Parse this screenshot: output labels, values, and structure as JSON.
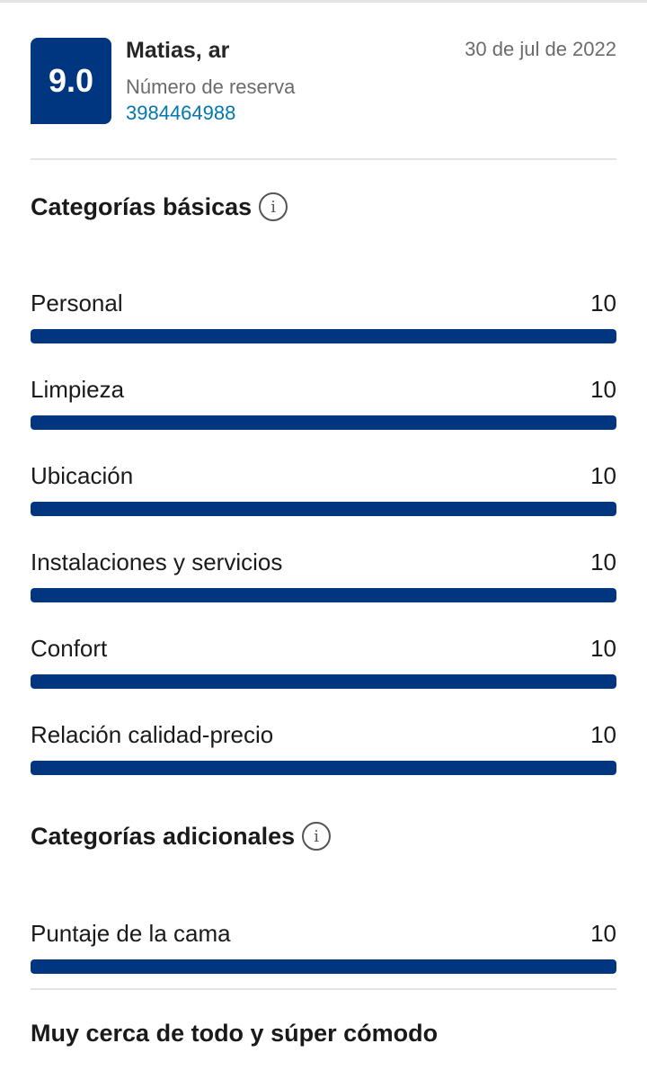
{
  "review": {
    "score": "9.0",
    "reviewer": "Matias, ar",
    "date": "30 de jul de 2022",
    "booking_label": "Número de reserva",
    "booking_number": "3984464988",
    "title": "Muy cerca de todo y súper cómodo"
  },
  "basic_categories": {
    "title": "Categorías básicas",
    "info_icon": "info-icon",
    "items": [
      {
        "label": "Personal",
        "score": "10",
        "fraction": 1.0
      },
      {
        "label": "Limpieza",
        "score": "10",
        "fraction": 1.0
      },
      {
        "label": "Ubicación",
        "score": "10",
        "fraction": 1.0
      },
      {
        "label": "Instalaciones y servicios",
        "score": "10",
        "fraction": 1.0
      },
      {
        "label": "Confort",
        "score": "10",
        "fraction": 1.0
      },
      {
        "label": "Relación calidad-precio",
        "score": "10",
        "fraction": 1.0
      }
    ]
  },
  "additional_categories": {
    "title": "Categorías adicionales",
    "info_icon": "info-icon",
    "items": [
      {
        "label": "Puntaje de la cama",
        "score": "10",
        "fraction": 1.0
      }
    ]
  },
  "colors": {
    "brand": "#003580",
    "link": "#0077b3"
  }
}
